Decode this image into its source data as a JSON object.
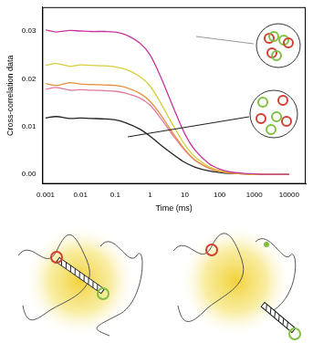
{
  "chart_data": {
    "type": "line",
    "x_label": "Time (ms)",
    "y_label": "Cross-correlation data",
    "log": "x",
    "grid": false,
    "xlim": [
      0.0008,
      30000
    ],
    "xticks": [
      0.001,
      0.01,
      0.1,
      1,
      10,
      100,
      1000,
      10000
    ],
    "ylim": [
      -0.002,
      0.035
    ],
    "yticks": [
      {
        "value": 0,
        "label": "0.00"
      },
      0.01,
      0.02,
      0.03
    ],
    "x": [
      0.001,
      0.002,
      0.005,
      0.01,
      0.02,
      0.05,
      0.1,
      0.2,
      0.5,
      1,
      2,
      5,
      10,
      20,
      50,
      100,
      200,
      500,
      1000,
      2000,
      5000,
      10000
    ],
    "series": [
      {
        "color": "#c8349c",
        "values": [
          0.0302,
          0.0298,
          0.0301,
          0.03,
          0.0299,
          0.0299,
          0.0298,
          0.0292,
          0.0275,
          0.025,
          0.0205,
          0.0135,
          0.0085,
          0.005,
          0.0022,
          0.0011,
          0.0005,
          0.0002,
          0.0001,
          0,
          0,
          0
        ]
      },
      {
        "color": "#d6cf3a",
        "values": [
          0.0228,
          0.0232,
          0.0226,
          0.0229,
          0.0228,
          0.0227,
          0.0225,
          0.022,
          0.0205,
          0.0185,
          0.015,
          0.0098,
          0.0062,
          0.0036,
          0.0016,
          0.0008,
          0.0004,
          0.0001,
          0,
          0,
          0,
          0
        ]
      },
      {
        "color": "#e8913c",
        "values": [
          0.019,
          0.0186,
          0.0192,
          0.0189,
          0.0188,
          0.0187,
          0.0186,
          0.0182,
          0.017,
          0.0153,
          0.0125,
          0.0082,
          0.0052,
          0.003,
          0.0013,
          0.0006,
          0.0003,
          0.0001,
          0,
          0,
          0,
          0
        ]
      },
      {
        "color": "#e07aa0",
        "values": [
          0.0178,
          0.0182,
          0.0176,
          0.0177,
          0.0176,
          0.0175,
          0.0174,
          0.017,
          0.016,
          0.0145,
          0.0118,
          0.0078,
          0.005,
          0.0029,
          0.0013,
          0.0006,
          0.0003,
          0.0001,
          0,
          0,
          0,
          0
        ]
      },
      {
        "color": "#222222",
        "values": [
          0.0118,
          0.0121,
          0.0117,
          0.0118,
          0.0117,
          0.0116,
          0.0114,
          0.0108,
          0.0095,
          0.008,
          0.0062,
          0.004,
          0.0025,
          0.0015,
          0.0007,
          0.0004,
          0.0002,
          0.0001,
          0,
          0,
          0,
          0
        ]
      }
    ]
  }
}
